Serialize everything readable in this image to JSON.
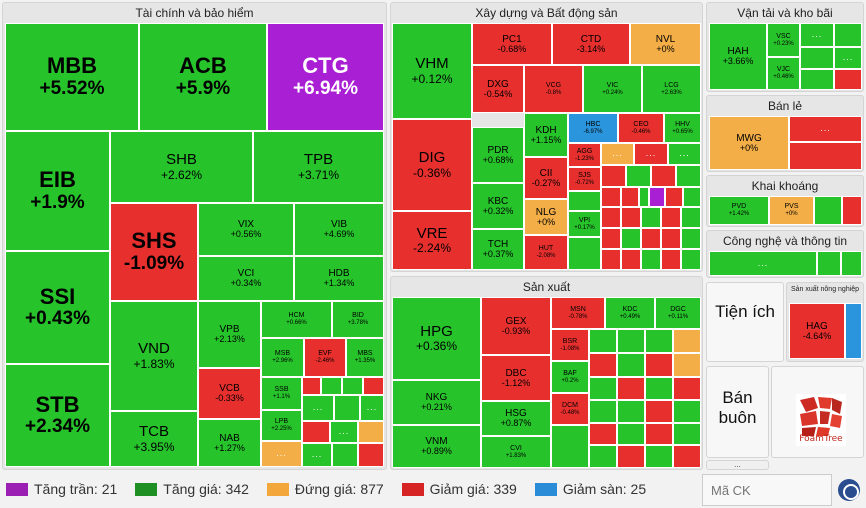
{
  "sectors": {
    "fin": "Tài chính và bảo hiểm",
    "con": "Xây dựng và Bất động sản",
    "trans": "Vận tải và kho bãi",
    "retail": "Bán lẻ",
    "mining": "Khai khoáng",
    "tech": "Công nghệ và thông tin",
    "mfg": "Sản xuất",
    "util": "Tiện ích",
    "whole": "Bán buôn",
    "agri": "Sản xuất nông nghiệp"
  },
  "tiles": {
    "mbb": {
      "t": "MBB",
      "c": "+5.52%"
    },
    "acb": {
      "t": "ACB",
      "c": "+5.9%"
    },
    "ctg": {
      "t": "CTG",
      "c": "+6.94%"
    },
    "eib": {
      "t": "EIB",
      "c": "+1.9%"
    },
    "ssi": {
      "t": "SSI",
      "c": "+0.43%"
    },
    "stb": {
      "t": "STB",
      "c": "+2.34%"
    },
    "shb": {
      "t": "SHB",
      "c": "+2.62%"
    },
    "tpb": {
      "t": "TPB",
      "c": "+3.71%"
    },
    "shs": {
      "t": "SHS",
      "c": "-1.09%"
    },
    "vix": {
      "t": "VIX",
      "c": "+0.56%"
    },
    "vib": {
      "t": "VIB",
      "c": "+4.69%"
    },
    "vci": {
      "t": "VCI",
      "c": "+0.34%"
    },
    "hdb": {
      "t": "HDB",
      "c": "+1.34%"
    },
    "vnd": {
      "t": "VND",
      "c": "+1.83%"
    },
    "vpb": {
      "t": "VPB",
      "c": "+2.13%"
    },
    "hcm": {
      "t": "HCM",
      "c": "+0.66%"
    },
    "bid": {
      "t": "BID",
      "c": "+3.78%"
    },
    "msb": {
      "t": "MSB",
      "c": "+2.96%"
    },
    "evf": {
      "t": "EVF",
      "c": "-2.46%"
    },
    "mbs": {
      "t": "MBS",
      "c": "+1.35%"
    },
    "tcb": {
      "t": "TCB",
      "c": "+3.95%"
    },
    "vcb": {
      "t": "VCB",
      "c": "-0.33%"
    },
    "ssb": {
      "t": "SSB",
      "c": "+1.1%"
    },
    "lpb": {
      "t": "LPB",
      "c": "+2.25%"
    },
    "nab": {
      "t": "NAB",
      "c": "+1.27%"
    },
    "vhm": {
      "t": "VHM",
      "c": "+0.12%"
    },
    "pc1": {
      "t": "PC1",
      "c": "-0.68%"
    },
    "ctd": {
      "t": "CTD",
      "c": "-3.14%"
    },
    "nvl": {
      "t": "NVL",
      "c": "+0%"
    },
    "dxg": {
      "t": "DXG",
      "c": "-0.54%"
    },
    "vcg": {
      "t": "VCG",
      "c": "-0.8%"
    },
    "vic": {
      "t": "VIC",
      "c": "+0.24%"
    },
    "lcg": {
      "t": "LCG",
      "c": "+2.63%"
    },
    "dig": {
      "t": "DIG",
      "c": "-0.36%"
    },
    "pdr": {
      "t": "PDR",
      "c": "+0.68%"
    },
    "kdh": {
      "t": "KDH",
      "c": "+1.15%"
    },
    "hbc": {
      "t": "HBC",
      "c": "-6.97%"
    },
    "ceo": {
      "t": "CEO",
      "c": "-0.46%"
    },
    "hhv": {
      "t": "HHV",
      "c": "+0.65%"
    },
    "kbc": {
      "t": "KBC",
      "c": "+0.32%"
    },
    "cii": {
      "t": "CII",
      "c": "-0.27%"
    },
    "agg": {
      "t": "AGG",
      "c": "-1.23%"
    },
    "sjs": {
      "t": "SJS",
      "c": "-0.72%"
    },
    "nlg": {
      "t": "NLG",
      "c": "+0%"
    },
    "vre": {
      "t": "VRE",
      "c": "-2.24%"
    },
    "tch": {
      "t": "TCH",
      "c": "+0.37%"
    },
    "hut": {
      "t": "HUT",
      "c": "-2.08%"
    },
    "vpi": {
      "t": "VPI",
      "c": "+0.17%"
    },
    "hpg": {
      "t": "HPG",
      "c": "+0.36%"
    },
    "gex": {
      "t": "GEX",
      "c": "-0.93%"
    },
    "msn": {
      "t": "MSN",
      "c": "-0.78%"
    },
    "kdc": {
      "t": "KDC",
      "c": "+0.49%"
    },
    "dgc": {
      "t": "DGC",
      "c": "+0.11%"
    },
    "nkg": {
      "t": "NKG",
      "c": "+0.21%"
    },
    "dbc": {
      "t": "DBC",
      "c": "-1.12%"
    },
    "bsr": {
      "t": "BSR",
      "c": "-1.08%"
    },
    "baf": {
      "t": "BAF",
      "c": "+0.2%"
    },
    "vnm": {
      "t": "VNM",
      "c": "+0.89%"
    },
    "hsg": {
      "t": "HSG",
      "c": "+0.87%"
    },
    "dcm": {
      "t": "DCM",
      "c": "-0.48%"
    },
    "cvi": {
      "t": "CVI",
      "c": "+1.83%"
    },
    "hah": {
      "t": "HAH",
      "c": "+3.66%"
    },
    "vsc": {
      "t": "VSC",
      "c": "+0.23%"
    },
    "vjc": {
      "t": "VJC",
      "c": "+0.46%"
    },
    "mwg": {
      "t": "MWG",
      "c": "+0%"
    },
    "pvd": {
      "t": "PVD",
      "c": "+1.42%"
    },
    "pvs": {
      "t": "PVS",
      "c": "+0%"
    },
    "hag": {
      "t": "HAG",
      "c": "-4.64%"
    }
  },
  "dots": "...",
  "legend": [
    {
      "label": "Tăng trần: 21",
      "color": "#9b1fb3"
    },
    {
      "label": "Tăng giá: 342",
      "color": "#1e8f23"
    },
    {
      "label": "Đứng giá: 877",
      "color": "#f3a63a"
    },
    {
      "label": "Giảm giá: 339",
      "color": "#d62424"
    },
    {
      "label": "Giảm sàn: 25",
      "color": "#2a8bd6"
    }
  ],
  "search": {
    "placeholder": "Mã CK"
  },
  "brand": "FoamTree",
  "colors": {
    "up": "#27c32b",
    "down": "#e7302e",
    "ref": "#f3ae47",
    "ceil": "#a91fd4",
    "floor": "#2a95dc"
  }
}
